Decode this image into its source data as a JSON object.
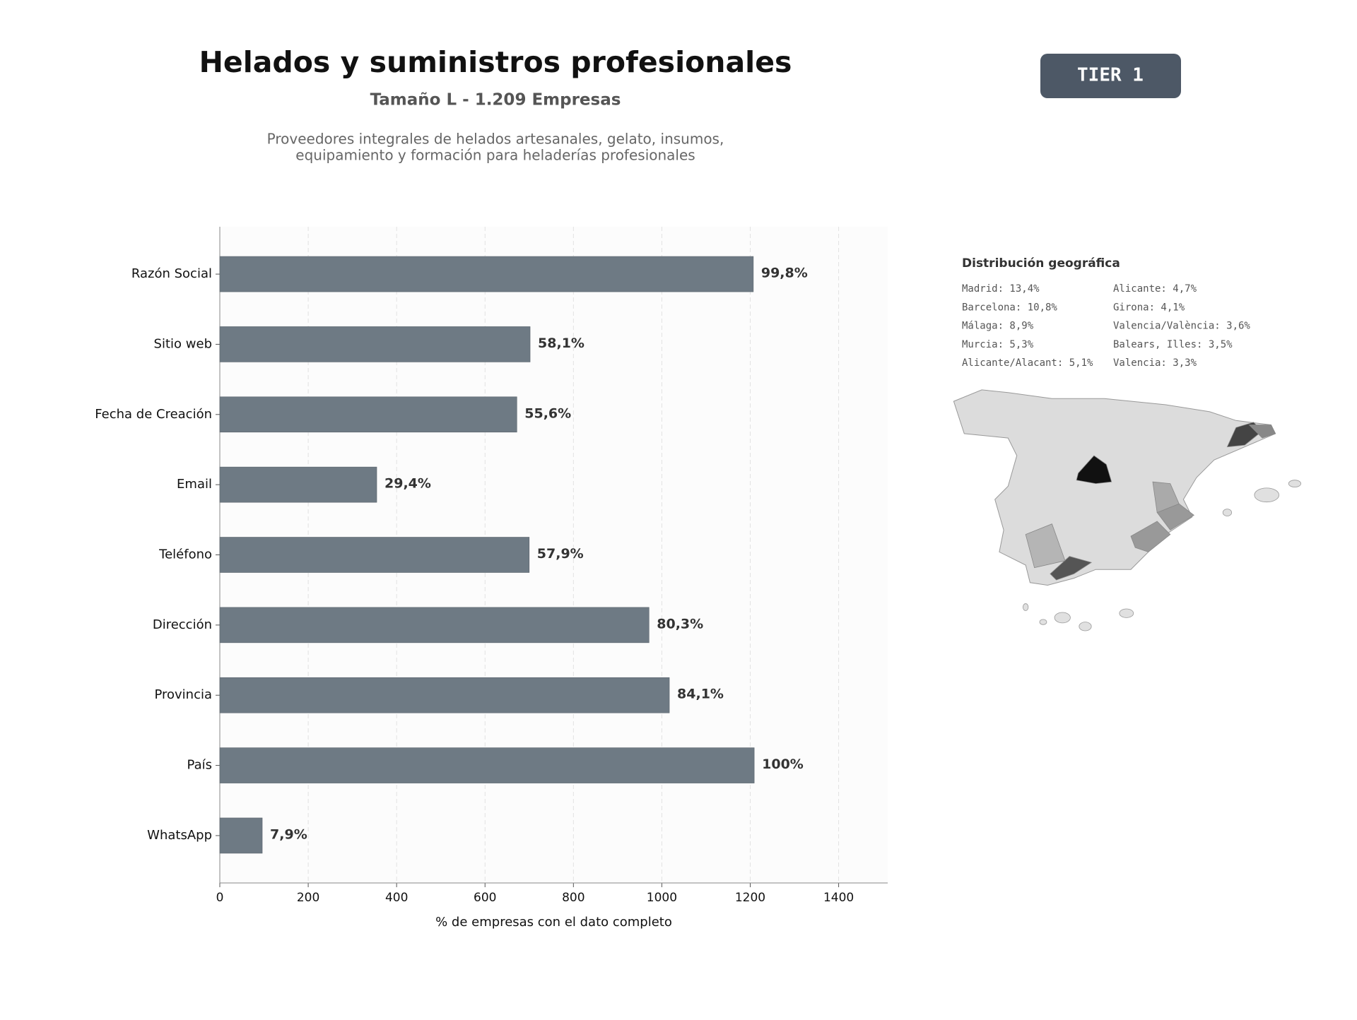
{
  "header": {
    "title": "Helados y suministros profesionales",
    "subtitle": "Tamaño L - 1.209 Empresas",
    "description": [
      "Proveedores integrales de helados artesanales, gelato, insumos,",
      "equipamiento y formación para heladerías profesionales"
    ]
  },
  "badge": "TIER 1",
  "geo": {
    "title": "Distribución geográfica",
    "items": [
      "Madrid: 13,4%",
      "Barcelona: 10,8%",
      "Málaga: 8,9%",
      "Murcia: 5,3%",
      "Alicante/Alacant: 5,1%",
      "Alicante: 4,7%",
      "Girona: 4,1%",
      "Valencia/València: 3,6%",
      "Balears, Illes: 3,5%",
      "Valencia: 3,3%"
    ]
  },
  "chart_data": {
    "type": "hbar",
    "categories": [
      "Razón Social",
      "Sitio web",
      "Fecha de Creación",
      "Email",
      "Teléfono",
      "Dirección",
      "Provincia",
      "País",
      "WhatsApp"
    ],
    "values": [
      1207,
      702,
      672,
      355,
      700,
      971,
      1017,
      1209,
      96
    ],
    "value_labels": [
      "99,8%",
      "58,1%",
      "55,6%",
      "29,4%",
      "57,9%",
      "80,3%",
      "84,1%",
      "100%",
      "7,9%"
    ],
    "color": "#6e7a84",
    "xlabel": "% de empresas con el dato completo",
    "xlim": [
      0,
      1511
    ],
    "xticks": [
      0,
      200,
      400,
      600,
      800,
      1000,
      1200,
      1400
    ],
    "grid": true
  }
}
